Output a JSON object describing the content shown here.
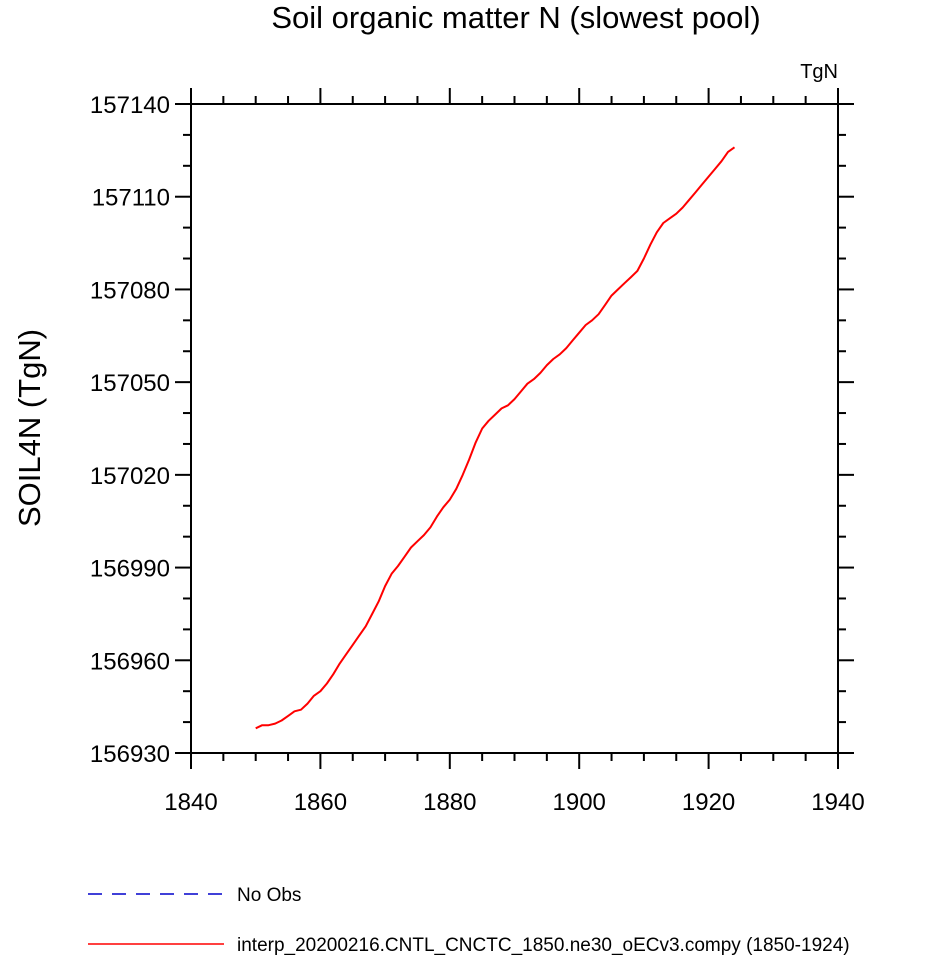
{
  "chart_data": {
    "type": "line",
    "title": "Soil organic matter N (slowest pool)",
    "units": "TgN",
    "xlabel": "",
    "ylabel": "SOIL4N  (TgN)",
    "xlim": [
      1840,
      1940
    ],
    "ylim": [
      156930,
      157140
    ],
    "xticks": [
      1840,
      1860,
      1880,
      1900,
      1920,
      1940
    ],
    "yticks": [
      156930,
      156960,
      156990,
      157020,
      157050,
      157080,
      157110,
      157140
    ],
    "grid": false,
    "legend_position": "bottom",
    "series": [
      {
        "name": "interp_20200216.CNTL_CNCTC_1850.ne30_oECv3.compy (1850-1924)",
        "color": "#ff0000",
        "dash": "solid",
        "x": [
          1850,
          1851,
          1852,
          1853,
          1854,
          1855,
          1856,
          1857,
          1858,
          1859,
          1860,
          1861,
          1862,
          1863,
          1864,
          1865,
          1866,
          1867,
          1868,
          1869,
          1870,
          1871,
          1872,
          1873,
          1874,
          1875,
          1876,
          1877,
          1878,
          1879,
          1880,
          1881,
          1882,
          1883,
          1884,
          1885,
          1886,
          1887,
          1888,
          1889,
          1890,
          1891,
          1892,
          1893,
          1894,
          1895,
          1896,
          1897,
          1898,
          1899,
          1900,
          1901,
          1902,
          1903,
          1904,
          1905,
          1906,
          1907,
          1908,
          1909,
          1910,
          1911,
          1912,
          1913,
          1914,
          1915,
          1916,
          1917,
          1918,
          1919,
          1920,
          1921,
          1922,
          1923,
          1924
        ],
        "y": [
          156938,
          156939,
          156939,
          156939.5,
          156940.5,
          156942,
          156943.5,
          156944,
          156946,
          156948.5,
          156950,
          156952.5,
          156955.5,
          156959,
          156962,
          156965,
          156968,
          156971,
          156975,
          156979,
          156984,
          156988,
          156990.5,
          156993.5,
          156996.5,
          156998.5,
          157000.5,
          157003,
          157006.5,
          157009.5,
          157012,
          157015.5,
          157020,
          157025,
          157030.5,
          157035,
          157037.5,
          157039.5,
          157041.5,
          157042.5,
          157044.5,
          157047,
          157049.5,
          157051,
          157053,
          157055.5,
          157057.5,
          157059,
          157061,
          157063.5,
          157066,
          157068.5,
          157070,
          157072,
          157075,
          157078,
          157080,
          157082,
          157084,
          157086,
          157090,
          157094.5,
          157098.5,
          157101.5,
          157103,
          157104.5,
          157106.5,
          157109,
          157111.5,
          157114,
          157116.5,
          157119,
          157121.5,
          157124.5,
          157126
        ]
      },
      {
        "name": "No Obs",
        "color": "#0000cc",
        "dash": "dashed",
        "x": [],
        "y": []
      }
    ]
  }
}
